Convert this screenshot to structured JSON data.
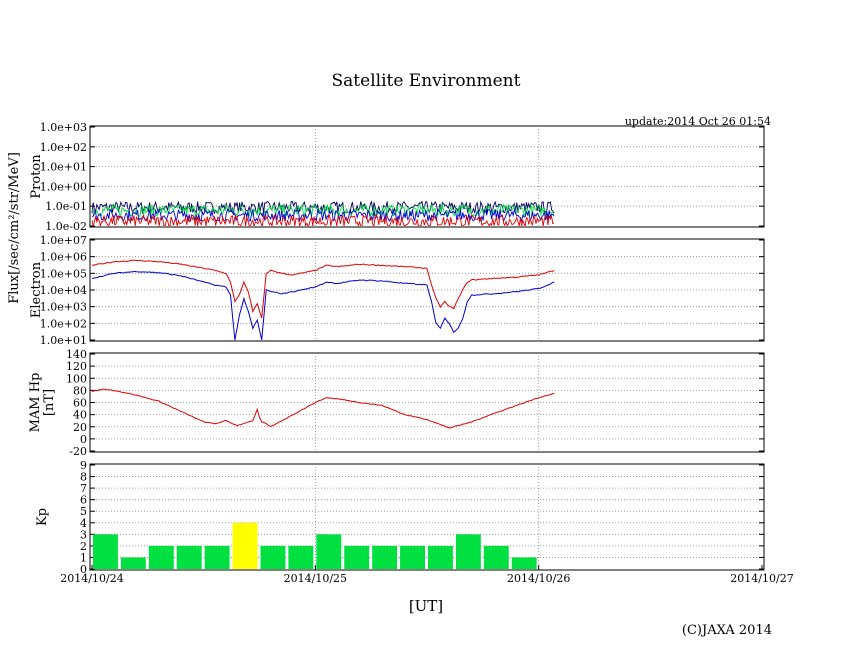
{
  "title": "Satellite Environment",
  "update_text": "update:2014 Oct 26 01:54",
  "copyright": "(C)JAXA 2014",
  "xlabel": "[UT]",
  "flux_label": "Flux[/sec/cm²/str/MeV]",
  "x_ticks": [
    "2014/10/24",
    "2014/10/25",
    "2014/10/26",
    "2014/10/27"
  ],
  "colors": {
    "red": "#e00000",
    "blue": "#0000d0",
    "green": "#00e040",
    "navy": "#000060",
    "yellow": "#ffff00"
  },
  "chart_data": [
    {
      "type": "line",
      "ylabel": "Proton",
      "yscale": "log",
      "ylim": [
        0.01,
        1000
      ],
      "y_ticks": [
        "1.0e-02",
        "1.0e-01",
        "1.0e+00",
        "1.0e+01",
        "1.0e+02",
        "1.0e+03"
      ],
      "xlim": [
        0,
        3
      ],
      "series": [
        {
          "color": "navy",
          "level": 0.1,
          "x_end": 2.07
        },
        {
          "color": "green",
          "level": 0.07,
          "x_end": 2.07
        },
        {
          "color": "blue",
          "level": 0.04,
          "x_end": 2.07
        },
        {
          "color": "red",
          "level": 0.02,
          "x_end": 2.07
        }
      ]
    },
    {
      "type": "line",
      "ylabel": "Electron",
      "yscale": "log",
      "ylim": [
        10,
        10000000
      ],
      "y_ticks": [
        "1.0e+01",
        "1.0e+02",
        "1.0e+03",
        "1.0e+04",
        "1.0e+05",
        "1.0e+06",
        "1.0e+07"
      ],
      "xlim": [
        0,
        3
      ],
      "series": [
        {
          "color": "red",
          "x": [
            0,
            0.1,
            0.2,
            0.3,
            0.4,
            0.5,
            0.55,
            0.6,
            0.62,
            0.64,
            0.66,
            0.68,
            0.7,
            0.72,
            0.74,
            0.76,
            0.78,
            0.8,
            0.85,
            0.9,
            1.0,
            1.05,
            1.1,
            1.2,
            1.3,
            1.4,
            1.5,
            1.52,
            1.54,
            1.56,
            1.58,
            1.6,
            1.62,
            1.64,
            1.66,
            1.68,
            1.7,
            1.8,
            1.9,
            2.0,
            2.07
          ],
          "y": [
            300000,
            500000,
            600000,
            500000,
            350000,
            200000,
            150000,
            100000,
            30000,
            2000,
            5000,
            30000,
            8000,
            500,
            1500,
            200,
            100000,
            150000,
            100000,
            80000,
            150000,
            300000,
            250000,
            350000,
            300000,
            250000,
            200000,
            20000,
            3000,
            1000,
            2000,
            1000,
            800,
            3000,
            10000,
            30000,
            40000,
            50000,
            60000,
            80000,
            150000
          ]
        },
        {
          "color": "blue",
          "x": [
            0,
            0.1,
            0.2,
            0.3,
            0.4,
            0.5,
            0.55,
            0.6,
            0.62,
            0.64,
            0.66,
            0.68,
            0.7,
            0.72,
            0.74,
            0.76,
            0.78,
            0.8,
            0.85,
            0.9,
            1.0,
            1.05,
            1.1,
            1.2,
            1.3,
            1.4,
            1.5,
            1.52,
            1.54,
            1.56,
            1.58,
            1.6,
            1.62,
            1.64,
            1.66,
            1.68,
            1.7,
            1.8,
            1.9,
            2.0,
            2.07
          ],
          "y": [
            50000,
            100000,
            130000,
            110000,
            70000,
            30000,
            20000,
            15000,
            5000,
            10,
            300,
            3000,
            500,
            50,
            150,
            10,
            10000,
            8000,
            6000,
            8000,
            15000,
            30000,
            25000,
            40000,
            35000,
            25000,
            20000,
            2000,
            100,
            50,
            200,
            100,
            30,
            50,
            200,
            2000,
            5000,
            6000,
            8000,
            12000,
            30000
          ]
        }
      ]
    },
    {
      "type": "line",
      "ylabel": "MAM Hp [nT]",
      "ylabel_lines": [
        "MAM Hp",
        "[nT]"
      ],
      "ylim": [
        -20,
        140
      ],
      "y_ticks": [
        "-20",
        "0",
        "20",
        "40",
        "60",
        "80",
        "100",
        "120",
        "140"
      ],
      "xlim": [
        0,
        3
      ],
      "series": [
        {
          "color": "red",
          "x": [
            0,
            0.05,
            0.1,
            0.2,
            0.3,
            0.4,
            0.5,
            0.55,
            0.6,
            0.65,
            0.7,
            0.72,
            0.74,
            0.75,
            0.76,
            0.78,
            0.8,
            0.9,
            1.0,
            1.05,
            1.1,
            1.2,
            1.3,
            1.4,
            1.5,
            1.6,
            1.7,
            1.8,
            1.9,
            2.0,
            2.07
          ],
          "y": [
            78,
            82,
            80,
            72,
            62,
            45,
            28,
            25,
            30,
            22,
            28,
            30,
            48,
            35,
            28,
            25,
            20,
            40,
            60,
            68,
            66,
            60,
            55,
            40,
            32,
            18,
            28,
            42,
            55,
            68,
            75
          ]
        }
      ]
    },
    {
      "type": "bar",
      "ylabel": "Kp",
      "ylim": [
        0,
        9
      ],
      "y_ticks": [
        "0",
        "1",
        "2",
        "3",
        "4",
        "5",
        "6",
        "7",
        "8",
        "9"
      ],
      "xlim": [
        0,
        3
      ],
      "bar_width_days": 0.125,
      "values": [
        3,
        1,
        2,
        2,
        2,
        4,
        2,
        2,
        3,
        2,
        2,
        2,
        2,
        3,
        2,
        1
      ],
      "bar_colors": [
        "green",
        "green",
        "green",
        "green",
        "green",
        "yellow",
        "green",
        "green",
        "green",
        "green",
        "green",
        "green",
        "green",
        "green",
        "green",
        "green"
      ]
    }
  ]
}
